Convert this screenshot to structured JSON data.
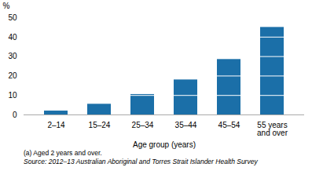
{
  "chart_data": {
    "type": "bar",
    "categories": [
      "2–14",
      "15–24",
      "25–34",
      "35–44",
      "45–54",
      "55 years\nand over"
    ],
    "values": [
      2.0,
      5.5,
      10.5,
      18.0,
      28.5,
      45.0
    ],
    "color": "#1b6fa8",
    "xlabel": "Age group (years)",
    "ylabel": "%",
    "ylim": [
      0,
      50
    ],
    "yticks": [
      0,
      10,
      20,
      30,
      40,
      50
    ],
    "grid": true,
    "annotations": [
      "(a) Aged 2 years and over.",
      "Source: 2012–13 Australian Aboriginal and Torres Strait Islander Health Survey"
    ]
  }
}
